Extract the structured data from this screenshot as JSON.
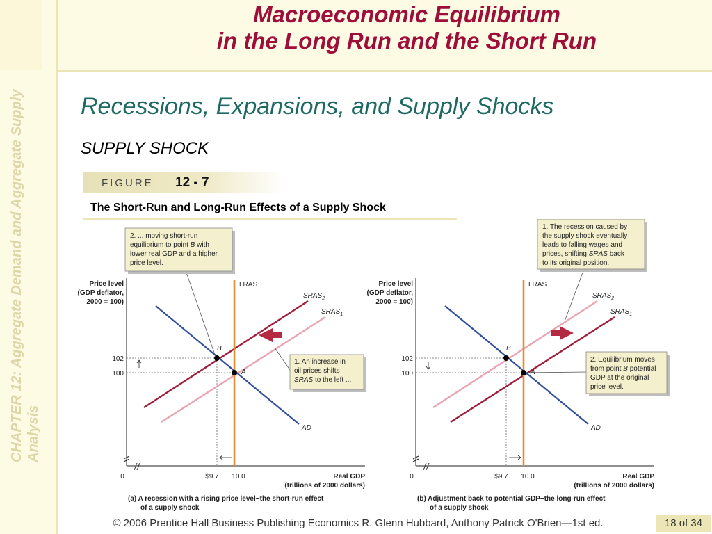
{
  "slide": {
    "title_line1": "Macroeconomic Equilibrium",
    "title_line2": "in the Long Run and the Short Run",
    "subtitle": "Recessions, Expansions, and Supply Shocks",
    "section_label": "SUPPLY SHOCK",
    "side_chapter": "CHAPTER 12:  Aggregate Demand and Aggregate Supply Analysis",
    "figure_word": "FIGURE",
    "figure_number": "12 - 7",
    "figure_caption": "The Short-Run and Long-Run Effects of a Supply Shock",
    "footer": "© 2006 Prentice Hall Business Publishing   Economics  R. Glenn Hubbard, Anthony Patrick O'Brien—1st ed.",
    "page": "18 of 34"
  },
  "colors": {
    "title": "#9e0e3a",
    "subtitle": "#1e6a62",
    "ad": "#2f4f9e",
    "sras2": "#a11d3c",
    "sras1": "#e9a3b1",
    "lras": "#e58d2f"
  },
  "chart_data": [
    {
      "type": "line",
      "title": "(a) A recession with a rising price level−the short-run effect of a supply shock",
      "ylabel": "Price level (GDP deflator, 2000 = 100)",
      "xlabel": "Real GDP (trillions of 2000 dollars)",
      "x_ticks": [
        "0",
        "$9.7",
        "10.0"
      ],
      "y_ticks": [
        "102",
        "100"
      ],
      "curves": [
        "LRAS",
        "SRAS2",
        "SRAS1",
        "AD"
      ],
      "points": [
        {
          "label": "B",
          "x": 9.7,
          "y": 102
        },
        {
          "label": "A",
          "x": 10.0,
          "y": 100
        }
      ],
      "callouts": [
        "2. ... moving short-run equilibrium to point B with lower real GDP and a higher price level.",
        "1. An increase in oil prices shifts SRAS to the left ..."
      ]
    },
    {
      "type": "line",
      "title": "(b) Adjustment back to potential GDP−the long-run effect of a supply shock",
      "ylabel": "Price level (GDP deflator, 2000 = 100)",
      "xlabel": "Real GDP (trillions of 2000 dollars)",
      "x_ticks": [
        "0",
        "$9.7",
        "10.0"
      ],
      "y_ticks": [
        "102",
        "100"
      ],
      "curves": [
        "LRAS",
        "SRAS2",
        "SRAS1",
        "AD"
      ],
      "points": [
        {
          "label": "B",
          "x": 9.7,
          "y": 102
        },
        {
          "label": "A",
          "x": 10.0,
          "y": 100
        }
      ],
      "callouts": [
        "1. The recession caused by the supply shock eventually leads to falling wages and prices, shifting SRAS back to its original position.",
        "2. Equilibrium moves from point B potential GDP at the original price level."
      ]
    }
  ],
  "labels": {
    "price_level": "Price level",
    "gdp_deflator": "(GDP deflator,",
    "base": "2000 = 100)",
    "lras": "LRAS",
    "sras": "SRAS",
    "sub2": "2",
    "sub1": "1",
    "ad": "AD",
    "point_a": "A",
    "point_b": "B",
    "tick_102": "102",
    "tick_100": "100",
    "tick_0": "0",
    "tick_97": "$9.7",
    "tick_10": "10.0",
    "real_gdp": "Real GDP",
    "trillions": "(trillions of 2000 dollars)"
  },
  "panel_a": {
    "callout_top": [
      "2. ... moving short-run",
      "equilibrium to point B with",
      "lower real GDP and a higher",
      "price level."
    ],
    "callout_right": [
      "1.  An increase in",
      "oil prices shifts",
      "SRAS to the left ..."
    ],
    "caption1": "(a) A recession with a rising price level−the short-run effect",
    "caption2": "of a supply shock"
  },
  "panel_b": {
    "callout_top": [
      "1.  The recession caused by",
      "the supply shock eventually",
      "leads to falling wages and",
      "prices, shifting SRAS back",
      "to its original position."
    ],
    "callout_right": [
      "2. Equilibrium moves",
      "from point B potential",
      "GDP at the original",
      "price level."
    ],
    "caption1": "(b) Adjustment back to potential GDP−the long-run effect",
    "caption2": "of a supply shock"
  }
}
